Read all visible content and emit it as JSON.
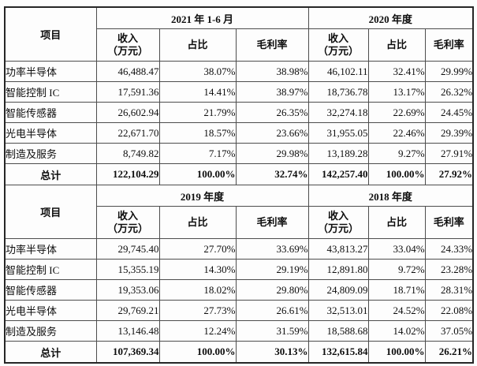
{
  "header": {
    "item": "项目",
    "income_l1": "收入",
    "income_l2": "（万元）",
    "share": "占比",
    "margin": "毛利率"
  },
  "sections": [
    {
      "period_left": "2021 年 1-6 月",
      "period_right": "2020 年度",
      "rows": [
        {
          "label": "功率半导体",
          "c1": "46,488.47",
          "c2": "38.07%",
          "c3": "38.98%",
          "c4": "46,102.11",
          "c5": "32.41%",
          "c6": "29.99%"
        },
        {
          "label": "智能控制 IC",
          "c1": "17,591.36",
          "c2": "14.41%",
          "c3": "38.97%",
          "c4": "18,736.78",
          "c5": "13.17%",
          "c6": "26.32%"
        },
        {
          "label": "智能传感器",
          "c1": "26,602.94",
          "c2": "21.79%",
          "c3": "26.35%",
          "c4": "32,274.18",
          "c5": "22.69%",
          "c6": "24.45%"
        },
        {
          "label": "光电半导体",
          "c1": "22,671.70",
          "c2": "18.57%",
          "c3": "23.66%",
          "c4": "31,955.05",
          "c5": "22.46%",
          "c6": "29.39%"
        },
        {
          "label": "制造及服务",
          "c1": "8,749.82",
          "c2": "7.17%",
          "c3": "29.98%",
          "c4": "13,189.28",
          "c5": "9.27%",
          "c6": "27.91%"
        }
      ],
      "total": {
        "label": "总计",
        "c1": "122,104.29",
        "c2": "100.00%",
        "c3": "32.74%",
        "c4": "142,257.40",
        "c5": "100.00%",
        "c6": "27.92%"
      }
    },
    {
      "period_left": "2019 年度",
      "period_right": "2018 年度",
      "rows": [
        {
          "label": "功率半导体",
          "c1": "29,745.40",
          "c2": "27.70%",
          "c3": "33.69%",
          "c4": "43,813.27",
          "c5": "33.04%",
          "c6": "24.33%"
        },
        {
          "label": "智能控制 IC",
          "c1": "15,355.19",
          "c2": "14.30%",
          "c3": "29.19%",
          "c4": "12,891.80",
          "c5": "9.72%",
          "c6": "23.28%"
        },
        {
          "label": "智能传感器",
          "c1": "19,353.06",
          "c2": "18.02%",
          "c3": "29.80%",
          "c4": "24,809.09",
          "c5": "18.71%",
          "c6": "28.31%"
        },
        {
          "label": "光电半导体",
          "c1": "29,769.21",
          "c2": "27.73%",
          "c3": "26.61%",
          "c4": "32,513.01",
          "c5": "24.52%",
          "c6": "22.08%"
        },
        {
          "label": "制造及服务",
          "c1": "13,146.48",
          "c2": "12.24%",
          "c3": "31.59%",
          "c4": "18,588.68",
          "c5": "14.02%",
          "c6": "37.05%"
        }
      ],
      "total": {
        "label": "总计",
        "c1": "107,369.34",
        "c2": "100.00%",
        "c3": "30.13%",
        "c4": "132,615.84",
        "c5": "100.00%",
        "c6": "26.21%"
      }
    }
  ],
  "colors": {
    "border_outer": "#262626",
    "border_inner": "#4d4d4d",
    "text": "#0d0d0d",
    "background": "#fdfdfd"
  }
}
